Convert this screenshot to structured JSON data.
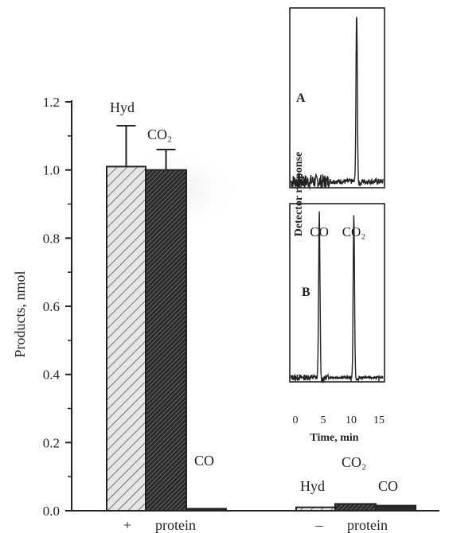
{
  "chart_data": [
    {
      "type": "bar",
      "ylabel": "Products, nmol",
      "ylim": [
        0,
        1.2
      ],
      "yticks": [
        "0.0",
        "0.2",
        "0.4",
        "0.6",
        "0.8",
        "1.0",
        "1.2"
      ],
      "categories": [
        {
          "sign": "+",
          "word": "protein"
        },
        {
          "sign": "–",
          "word": "protein"
        }
      ],
      "series": [
        {
          "name": "Hyd",
          "values": [
            1.01,
            0.01
          ],
          "errors": [
            0.12,
            0
          ],
          "pattern": "light-hatch"
        },
        {
          "name": "CO₂",
          "values": [
            1.0,
            0.02
          ],
          "errors": [
            0.06,
            0
          ],
          "pattern": "dense-hatch"
        },
        {
          "name": "CO",
          "values": [
            0.0,
            0.015
          ],
          "errors": [
            0,
            0
          ],
          "pattern": "solid"
        }
      ],
      "grid": false
    },
    {
      "type": "line",
      "ylabel": "Detector response",
      "xlabel": "Time, min",
      "xticks": [
        "0",
        "5",
        "10",
        "15"
      ],
      "xlim": [
        -1,
        16
      ],
      "panels": [
        {
          "name": "A",
          "peaks": [
            {
              "label": "",
              "time": 11.0,
              "height": 0.95
            }
          ]
        },
        {
          "name": "B",
          "peaks": [
            {
              "label": "CO",
              "time": 4.3,
              "height": 0.93
            },
            {
              "label": "CO₂",
              "time": 10.5,
              "height": 0.92
            }
          ]
        }
      ]
    }
  ]
}
